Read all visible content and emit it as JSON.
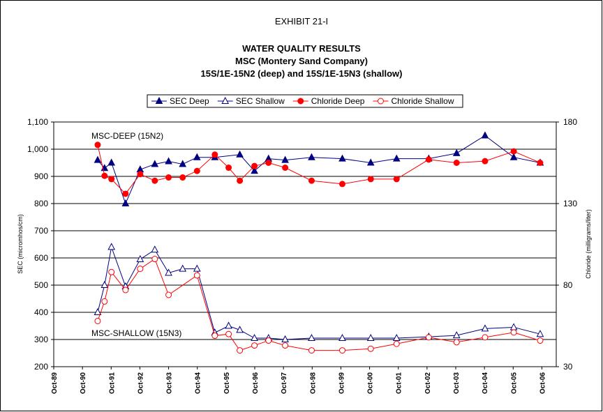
{
  "chart_data": {
    "type": "line",
    "title": "EXHIBIT 21-I",
    "subtitle": [
      "WATER QUALITY RESULTS",
      "MSC (Montery Sand Company)",
      "15S/1E-15N2 (deep) and 15S/1E-15N3 (shallow)"
    ],
    "ylabel": "SEC (micromhos/cm)",
    "y2label": "Chloride (milligrams/liter)",
    "annotations": [
      "MSC-DEEP (15N2)",
      "MSC-SHALLOW (15N3)"
    ],
    "xlim": [
      1989.75,
      2007.25
    ],
    "xticks": [
      {
        "value": 1989.75,
        "label": "Oct-89"
      },
      {
        "value": 1990.75,
        "label": "Oct-90"
      },
      {
        "value": 1991.75,
        "label": "Oct-91"
      },
      {
        "value": 1992.75,
        "label": "Oct-92"
      },
      {
        "value": 1993.75,
        "label": "Oct-93"
      },
      {
        "value": 1994.75,
        "label": "Oct-94"
      },
      {
        "value": 1995.75,
        "label": "Oct-95"
      },
      {
        "value": 1996.75,
        "label": "Oct-96"
      },
      {
        "value": 1997.75,
        "label": "Oct-97"
      },
      {
        "value": 1998.75,
        "label": "Oct-98"
      },
      {
        "value": 1999.75,
        "label": "Oct-99"
      },
      {
        "value": 2000.75,
        "label": "Oct-00"
      },
      {
        "value": 2001.75,
        "label": "Oct-01"
      },
      {
        "value": 2002.75,
        "label": "Oct-02"
      },
      {
        "value": 2003.75,
        "label": "Oct-03"
      },
      {
        "value": 2004.75,
        "label": "Oct-04"
      },
      {
        "value": 2005.75,
        "label": "Oct-05"
      },
      {
        "value": 2006.75,
        "label": "Oct-06"
      }
    ],
    "ylim": [
      200,
      1100
    ],
    "yticks": [
      200,
      300,
      400,
      500,
      600,
      700,
      800,
      900,
      {
        "value": 1000,
        "label": "1,000"
      },
      {
        "value": 1100,
        "label": "1,100"
      }
    ],
    "y2lim": [
      30,
      180
    ],
    "y2ticks": [
      30,
      80,
      130,
      180
    ],
    "grid": true,
    "legend": "top",
    "series": [
      {
        "name": "SEC Deep",
        "color": "#000080",
        "marker": "triangle",
        "filled": true,
        "x": [
          1991.28,
          1991.52,
          1991.76,
          1992.25,
          1992.76,
          1993.27,
          1993.75,
          1994.24,
          1994.74,
          1995.36,
          1996.23,
          1996.74,
          1997.23,
          1997.81,
          1998.73,
          1999.8,
          2000.79,
          2001.69,
          2002.81,
          2003.78,
          2004.77,
          2005.77,
          2006.69
        ],
        "values": [
          960,
          930,
          950,
          800,
          925,
          945,
          955,
          945,
          970,
          970,
          980,
          920,
          965,
          960,
          970,
          965,
          950,
          965,
          965,
          985,
          1050,
          970,
          950
        ]
      },
      {
        "name": "SEC Shallow",
        "color": "#000080",
        "marker": "triangle",
        "filled": false,
        "x": [
          1991.28,
          1991.52,
          1991.76,
          1992.25,
          1992.76,
          1993.27,
          1993.75,
          1994.24,
          1994.74,
          1995.36,
          1995.84,
          1996.23,
          1996.74,
          1997.23,
          1997.81,
          1998.73,
          1999.8,
          2000.79,
          2001.69,
          2002.81,
          2003.78,
          2004.77,
          2005.77,
          2006.69
        ],
        "values": [
          400,
          500,
          640,
          495,
          595,
          630,
          545,
          560,
          560,
          325,
          350,
          335,
          305,
          305,
          300,
          305,
          305,
          305,
          305,
          310,
          315,
          340,
          345,
          320
        ]
      },
      {
        "name": "Chloride Deep",
        "color": "#ff0000",
        "marker": "circle",
        "filled": true,
        "axis": "y2",
        "x": [
          1991.28,
          1991.52,
          1991.76,
          1992.25,
          1992.76,
          1993.27,
          1993.75,
          1994.24,
          1994.74,
          1995.36,
          1995.84,
          1996.23,
          1996.74,
          1997.23,
          1997.81,
          1998.73,
          1999.8,
          2000.79,
          2001.69,
          2002.81,
          2003.78,
          2004.77,
          2005.77,
          2006.69
        ],
        "values": [
          166,
          147,
          145,
          136,
          148,
          144,
          146,
          146,
          150,
          160,
          152,
          144,
          153,
          155,
          152,
          144,
          142,
          145,
          145,
          157,
          155,
          156,
          162,
          155
        ]
      },
      {
        "name": "Chloride Shallow",
        "color": "#ff0000",
        "marker": "circle",
        "filled": false,
        "axis": "y2",
        "x": [
          1991.28,
          1991.52,
          1991.76,
          1992.25,
          1992.76,
          1993.27,
          1993.75,
          1994.74,
          1995.36,
          1995.84,
          1996.23,
          1996.74,
          1997.23,
          1997.81,
          1998.73,
          1999.8,
          2000.79,
          2001.69,
          2002.81,
          2003.78,
          2004.77,
          2005.77,
          2006.69
        ],
        "values": [
          58,
          70,
          88,
          77,
          90,
          96,
          74,
          86,
          49,
          50,
          40,
          43,
          46,
          43,
          40,
          40,
          41,
          44,
          48,
          45,
          48,
          51,
          46
        ]
      }
    ]
  }
}
